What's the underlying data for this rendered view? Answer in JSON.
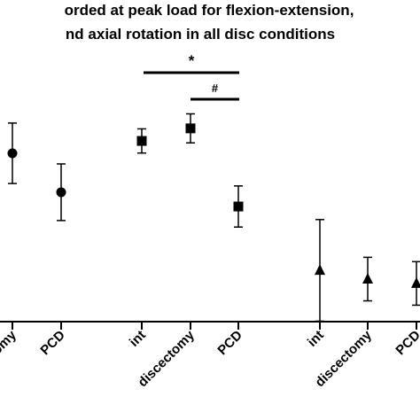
{
  "chart_data": {
    "type": "errorbar",
    "title_lines": [
      "orded at peak load for flexion-extension,",
      "nd axial rotation in all disc conditions"
    ],
    "categories": [
      "discectomy",
      "PCD",
      "int",
      "discectomy",
      "PCD",
      "int",
      "discectomy",
      "PCD"
    ],
    "ylim": [
      0,
      100
    ],
    "color": "#000000",
    "series": [
      {
        "marker": "circle",
        "values": [
          69.6,
          53.5,
          null,
          null,
          null,
          null,
          null,
          null
        ],
        "errors": [
          12.5,
          11.7,
          null,
          null,
          null,
          null,
          null,
          null
        ]
      },
      {
        "marker": "square",
        "values": [
          null,
          null,
          74.7,
          79.9,
          47.6,
          null,
          null,
          null
        ],
        "errors": [
          null,
          null,
          5,
          6,
          8.5,
          null,
          null,
          null
        ]
      },
      {
        "marker": "triangle",
        "values": [
          null,
          null,
          null,
          null,
          null,
          21.2,
          17.6,
          15.8
        ],
        "errors": [
          null,
          null,
          null,
          null,
          null,
          21,
          9,
          9
        ]
      }
    ],
    "annotations": [
      "*",
      "#"
    ]
  }
}
